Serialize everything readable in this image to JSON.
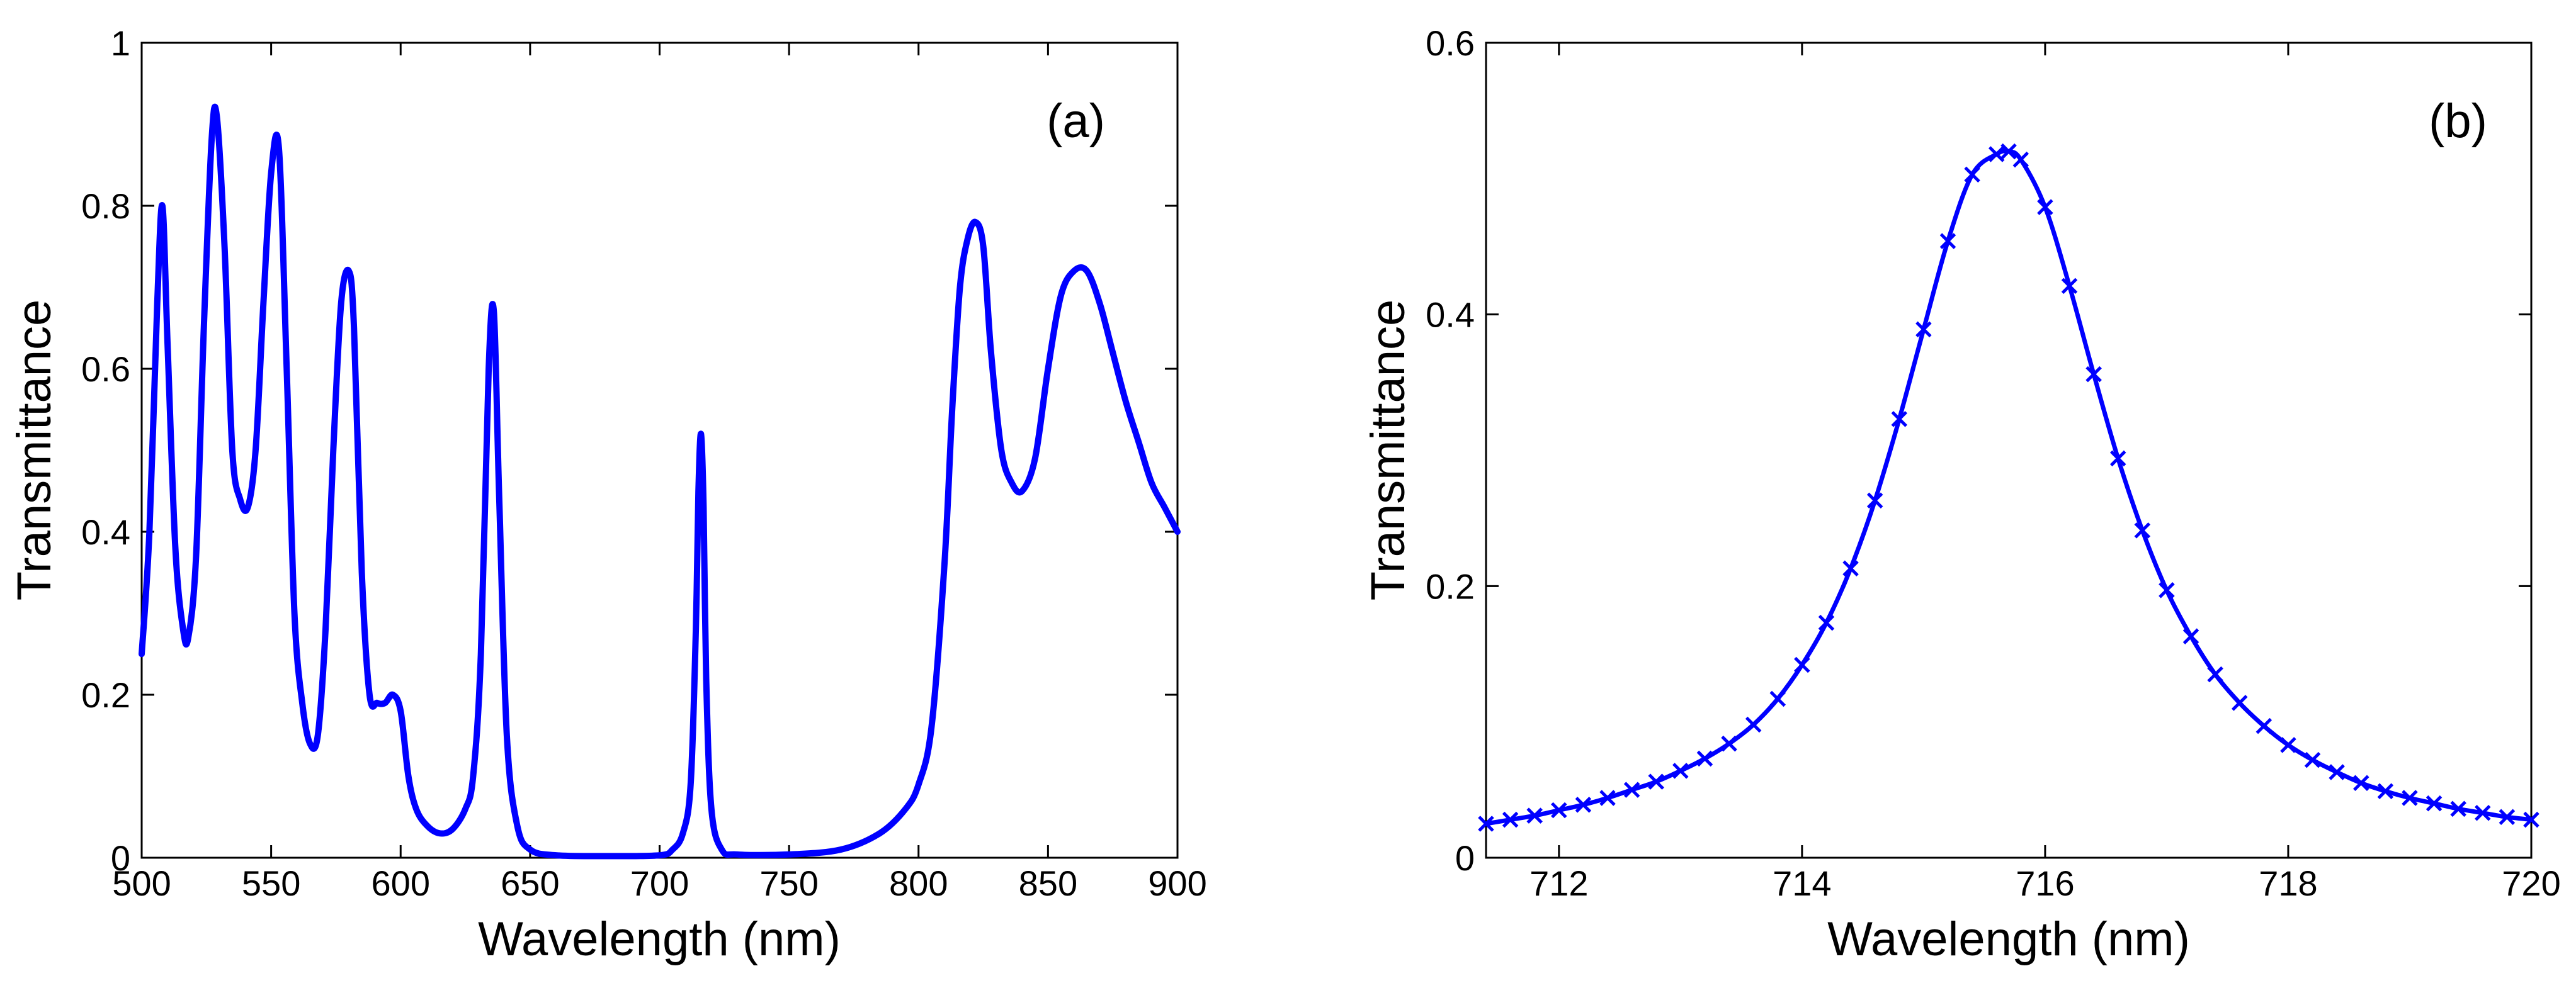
{
  "chart_data": [
    {
      "type": "line",
      "panel": "(a)",
      "xlabel": "Wavelength (nm)",
      "ylabel": "Transmittance",
      "xlim": [
        500,
        900
      ],
      "ylim": [
        0,
        1
      ],
      "xticks": [
        500,
        550,
        600,
        650,
        700,
        750,
        800,
        850,
        900
      ],
      "yticks": [
        0,
        0.2,
        0.4,
        0.6,
        0.8,
        1
      ],
      "ytick_labels": [
        "0",
        "0.2",
        "0.4",
        "0.6",
        "0.8",
        "1"
      ],
      "color": "#0000ff",
      "series": [
        {
          "name": "transmittance",
          "x": [
            500,
            503,
            506,
            508,
            510,
            513,
            516,
            518,
            521,
            524,
            527,
            529,
            532,
            535,
            538,
            541,
            544,
            547,
            550,
            553,
            556,
            559,
            562,
            565,
            568,
            571,
            574,
            577,
            580,
            582,
            585,
            588,
            591,
            594,
            597,
            600,
            603,
            606,
            610,
            615,
            620,
            625,
            628,
            631,
            634,
            636,
            638,
            641,
            645,
            650,
            660,
            680,
            700,
            705,
            709,
            712,
            714,
            715,
            716,
            717,
            718,
            720,
            724,
            730,
            750,
            770,
            785,
            795,
            800,
            805,
            810,
            813,
            816,
            819,
            822,
            825,
            828,
            832,
            836,
            840,
            845,
            850,
            855,
            860,
            865,
            870,
            875,
            880,
            885,
            890,
            895,
            900
          ],
          "y": [
            0.25,
            0.4,
            0.68,
            0.8,
            0.63,
            0.38,
            0.28,
            0.27,
            0.37,
            0.65,
            0.88,
            0.91,
            0.75,
            0.5,
            0.44,
            0.43,
            0.5,
            0.68,
            0.84,
            0.87,
            0.6,
            0.3,
            0.19,
            0.14,
            0.15,
            0.28,
            0.5,
            0.68,
            0.72,
            0.65,
            0.35,
            0.2,
            0.19,
            0.19,
            0.2,
            0.18,
            0.1,
            0.06,
            0.04,
            0.03,
            0.035,
            0.06,
            0.1,
            0.25,
            0.6,
            0.67,
            0.45,
            0.15,
            0.04,
            0.01,
            0.003,
            0.002,
            0.003,
            0.01,
            0.03,
            0.09,
            0.28,
            0.45,
            0.52,
            0.43,
            0.22,
            0.06,
            0.01,
            0.004,
            0.004,
            0.01,
            0.03,
            0.06,
            0.09,
            0.16,
            0.36,
            0.55,
            0.7,
            0.76,
            0.78,
            0.75,
            0.62,
            0.5,
            0.46,
            0.45,
            0.49,
            0.6,
            0.69,
            0.72,
            0.72,
            0.68,
            0.62,
            0.56,
            0.51,
            0.46,
            0.43,
            0.4
          ]
        }
      ]
    },
    {
      "type": "line",
      "panel": "(b)",
      "xlabel": "Wavelength (nm)",
      "ylabel": "Transmittance",
      "xlim": [
        711.4,
        720
      ],
      "ylim": [
        0,
        0.6
      ],
      "xticks": [
        712,
        714,
        716,
        718,
        720
      ],
      "yticks": [
        0,
        0.2,
        0.4,
        0.6
      ],
      "ytick_labels": [
        "0",
        "0.2",
        "0.4",
        "0.6"
      ],
      "color": "#0000ff",
      "marker": "x",
      "peak": {
        "x": 715.7,
        "y": 0.52
      },
      "series": [
        {
          "name": "transmittance (line with x markers)",
          "x": [
            711.4,
            711.6,
            711.8,
            712.0,
            712.2,
            712.4,
            712.6,
            712.8,
            713.0,
            713.2,
            713.4,
            713.6,
            713.8,
            714.0,
            714.2,
            714.4,
            714.6,
            714.8,
            715.0,
            715.2,
            715.4,
            715.6,
            715.7,
            715.8,
            716.0,
            716.2,
            716.4,
            716.6,
            716.8,
            717.0,
            717.2,
            717.4,
            717.6,
            717.8,
            718.0,
            718.2,
            718.4,
            718.6,
            718.8,
            719.0,
            719.2,
            719.4,
            719.6,
            719.8,
            720.0
          ],
          "y": [
            0.025,
            0.028,
            0.031,
            0.035,
            0.039,
            0.044,
            0.05,
            0.056,
            0.064,
            0.073,
            0.084,
            0.098,
            0.117,
            0.142,
            0.173,
            0.213,
            0.263,
            0.323,
            0.389,
            0.454,
            0.503,
            0.518,
            0.52,
            0.514,
            0.479,
            0.421,
            0.356,
            0.294,
            0.241,
            0.197,
            0.163,
            0.135,
            0.114,
            0.097,
            0.083,
            0.072,
            0.063,
            0.055,
            0.049,
            0.044,
            0.04,
            0.036,
            0.033,
            0.03,
            0.028
          ]
        }
      ]
    }
  ]
}
